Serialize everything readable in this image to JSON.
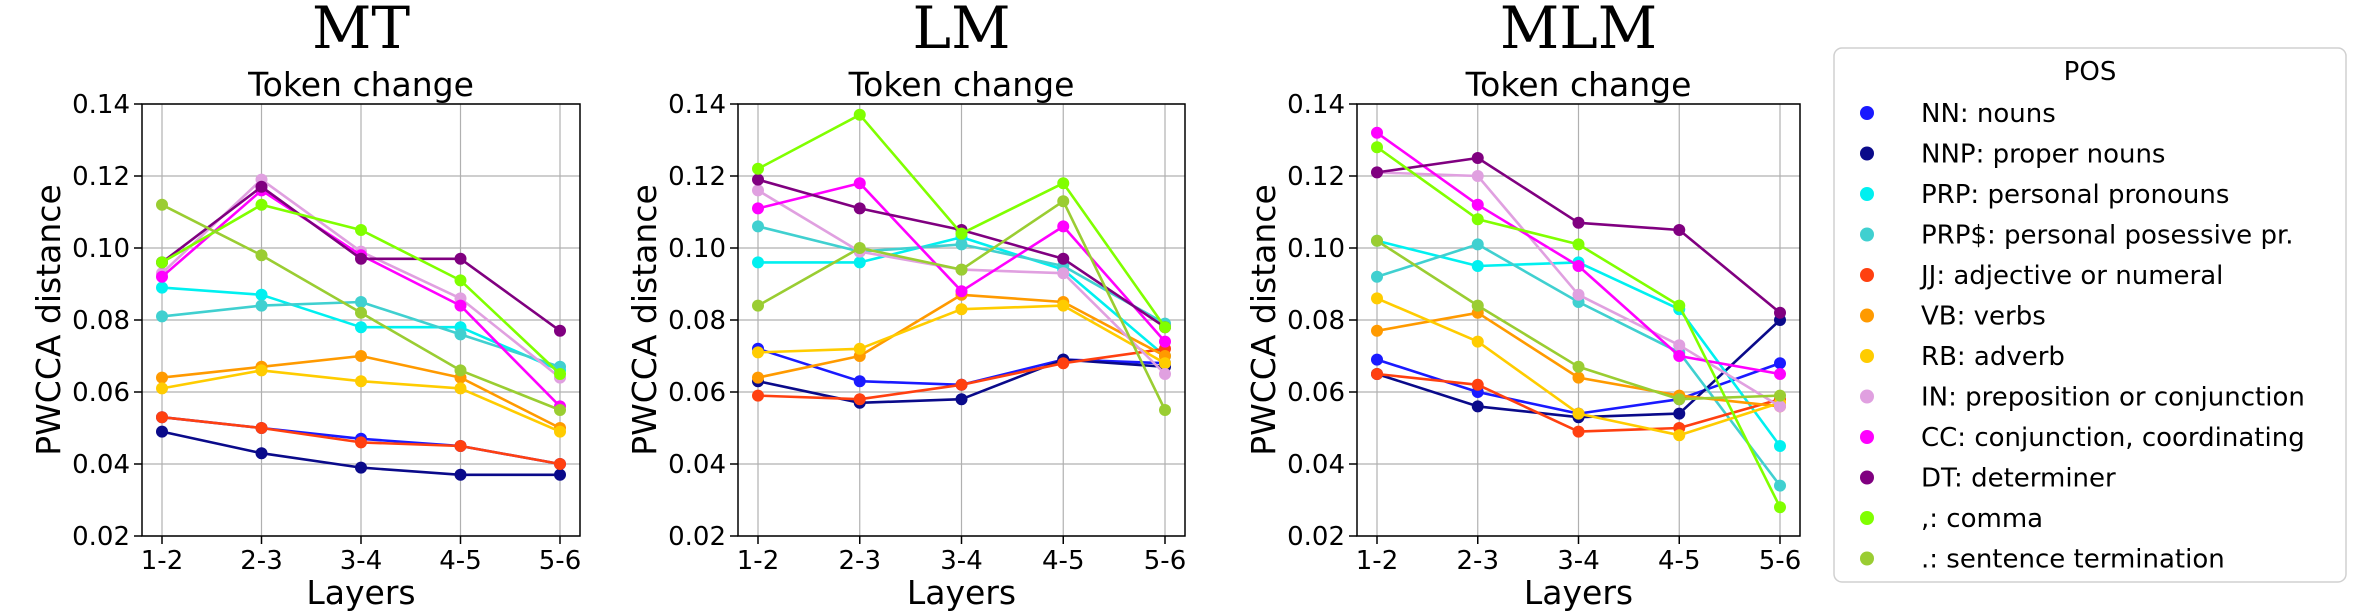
{
  "chart_data": [
    {
      "type": "line",
      "model_label": "MT",
      "title": "Token change",
      "xlabel": "Layers",
      "ylabel": "PWCCA distance",
      "categories": [
        "1-2",
        "2-3",
        "3-4",
        "4-5",
        "5-6"
      ],
      "ylim": [
        0.02,
        0.14
      ],
      "yticks": [
        "0.02",
        "0.04",
        "0.06",
        "0.08",
        "0.10",
        "0.12",
        "0.14"
      ],
      "grid": true,
      "series": [
        {
          "name": "NN: nouns",
          "color": "#1a1aff",
          "values": [
            0.053,
            0.05,
            0.047,
            0.045,
            0.04
          ]
        },
        {
          "name": "NNP: proper nouns",
          "color": "#0a0a8a",
          "values": [
            0.049,
            0.043,
            0.039,
            0.037,
            0.037
          ]
        },
        {
          "name": "PRP: personal pronouns",
          "color": "#00f0f0",
          "values": [
            0.089,
            0.087,
            0.078,
            0.078,
            0.066
          ]
        },
        {
          "name": "PRP$: personal posessive pr.",
          "color": "#40d0d0",
          "values": [
            0.081,
            0.084,
            0.085,
            0.076,
            0.067
          ]
        },
        {
          "name": "JJ: adjective or numeral",
          "color": "#ff4010",
          "values": [
            0.053,
            0.05,
            0.046,
            0.045,
            0.04
          ]
        },
        {
          "name": "VB: verbs",
          "color": "#ff9a00",
          "values": [
            0.064,
            0.067,
            0.07,
            0.064,
            0.05
          ]
        },
        {
          "name": "RB: adverb",
          "color": "#ffcc00",
          "values": [
            0.061,
            0.066,
            0.063,
            0.061,
            0.049
          ]
        },
        {
          "name": "IN: preposition or conjunction",
          "color": "#e0a0e0",
          "values": [
            0.093,
            0.119,
            0.099,
            0.086,
            0.064
          ]
        },
        {
          "name": "CC: conjunction, coordinating",
          "color": "#ff00ff",
          "values": [
            0.092,
            0.116,
            0.098,
            0.084,
            0.056
          ]
        },
        {
          "name": "DT: determiner",
          "color": "#800080",
          "values": [
            0.096,
            0.117,
            0.097,
            0.097,
            0.077
          ]
        },
        {
          "name": ",: comma",
          "color": "#80ff00",
          "values": [
            0.096,
            0.112,
            0.105,
            0.091,
            0.065
          ]
        },
        {
          "name": ".: sentence termination",
          "color": "#9acd32",
          "values": [
            0.112,
            0.098,
            0.082,
            0.066,
            0.055
          ]
        }
      ]
    },
    {
      "type": "line",
      "model_label": "LM",
      "title": "Token change",
      "xlabel": "Layers",
      "ylabel": "PWCCA distance",
      "categories": [
        "1-2",
        "2-3",
        "3-4",
        "4-5",
        "5-6"
      ],
      "ylim": [
        0.02,
        0.14
      ],
      "yticks": [
        "0.02",
        "0.04",
        "0.06",
        "0.08",
        "0.10",
        "0.12",
        "0.14"
      ],
      "grid": true,
      "series": [
        {
          "name": "NN: nouns",
          "color": "#1a1aff",
          "values": [
            0.072,
            0.063,
            0.062,
            0.069,
            0.068
          ]
        },
        {
          "name": "NNP: proper nouns",
          "color": "#0a0a8a",
          "values": [
            0.063,
            0.057,
            0.058,
            0.069,
            0.067
          ]
        },
        {
          "name": "PRP: personal pronouns",
          "color": "#00f0f0",
          "values": [
            0.096,
            0.096,
            0.103,
            0.094,
            0.07
          ]
        },
        {
          "name": "PRP$: personal posessive pr.",
          "color": "#40d0d0",
          "values": [
            0.106,
            0.099,
            0.101,
            0.095,
            0.079
          ]
        },
        {
          "name": "JJ: adjective or numeral",
          "color": "#ff4010",
          "values": [
            0.059,
            0.058,
            0.062,
            0.068,
            0.072
          ]
        },
        {
          "name": "VB: verbs",
          "color": "#ff9a00",
          "values": [
            0.064,
            0.07,
            0.087,
            0.085,
            0.07
          ]
        },
        {
          "name": "RB: adverb",
          "color": "#ffcc00",
          "values": [
            0.071,
            0.072,
            0.083,
            0.084,
            0.068
          ]
        },
        {
          "name": "IN: preposition or conjunction",
          "color": "#e0a0e0",
          "values": [
            0.116,
            0.099,
            0.094,
            0.093,
            0.065
          ]
        },
        {
          "name": "CC: conjunction, coordinating",
          "color": "#ff00ff",
          "values": [
            0.111,
            0.118,
            0.088,
            0.106,
            0.074
          ]
        },
        {
          "name": "DT: determiner",
          "color": "#800080",
          "values": [
            0.119,
            0.111,
            0.105,
            0.097,
            0.078
          ]
        },
        {
          "name": ",: comma",
          "color": "#80ff00",
          "values": [
            0.122,
            0.137,
            0.104,
            0.118,
            0.078
          ]
        },
        {
          "name": ".: sentence termination",
          "color": "#9acd32",
          "values": [
            0.084,
            0.1,
            0.094,
            0.113,
            0.055
          ]
        }
      ]
    },
    {
      "type": "line",
      "model_label": "MLM",
      "title": "Token change",
      "xlabel": "Layers",
      "ylabel": "PWCCA distance",
      "categories": [
        "1-2",
        "2-3",
        "3-4",
        "4-5",
        "5-6"
      ],
      "ylim": [
        0.02,
        0.14
      ],
      "yticks": [
        "0.02",
        "0.04",
        "0.06",
        "0.08",
        "0.10",
        "0.12",
        "0.14"
      ],
      "grid": true,
      "series": [
        {
          "name": "NN: nouns",
          "color": "#1a1aff",
          "values": [
            0.069,
            0.06,
            0.054,
            0.058,
            0.068
          ]
        },
        {
          "name": "NNP: proper nouns",
          "color": "#0a0a8a",
          "values": [
            0.065,
            0.056,
            0.053,
            0.054,
            0.08
          ]
        },
        {
          "name": "PRP: personal pronouns",
          "color": "#00f0f0",
          "values": [
            0.102,
            0.095,
            0.096,
            0.083,
            0.045
          ]
        },
        {
          "name": "PRP$: personal posessive pr.",
          "color": "#40d0d0",
          "values": [
            0.092,
            0.101,
            0.085,
            0.071,
            0.034
          ]
        },
        {
          "name": "JJ: adjective or numeral",
          "color": "#ff4010",
          "values": [
            0.065,
            0.062,
            0.049,
            0.05,
            0.058
          ]
        },
        {
          "name": "VB: verbs",
          "color": "#ff9a00",
          "values": [
            0.077,
            0.082,
            0.064,
            0.059,
            0.056
          ]
        },
        {
          "name": "RB: adverb",
          "color": "#ffcc00",
          "values": [
            0.086,
            0.074,
            0.054,
            0.048,
            0.057
          ]
        },
        {
          "name": "IN: preposition or conjunction",
          "color": "#e0a0e0",
          "values": [
            0.121,
            0.12,
            0.087,
            0.073,
            0.056
          ]
        },
        {
          "name": "CC: conjunction, coordinating",
          "color": "#ff00ff",
          "values": [
            0.132,
            0.112,
            0.095,
            0.07,
            0.065
          ]
        },
        {
          "name": "DT: determiner",
          "color": "#800080",
          "values": [
            0.121,
            0.125,
            0.107,
            0.105,
            0.082
          ]
        },
        {
          "name": ",: comma",
          "color": "#80ff00",
          "values": [
            0.128,
            0.108,
            0.101,
            0.084,
            0.028
          ]
        },
        {
          "name": ".: sentence termination",
          "color": "#9acd32",
          "values": [
            0.102,
            0.084,
            0.067,
            0.058,
            0.059
          ]
        }
      ]
    }
  ],
  "legend": {
    "title": "POS",
    "placement": "right"
  }
}
